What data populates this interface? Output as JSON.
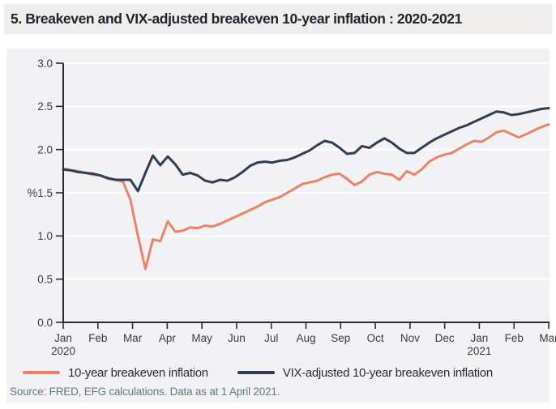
{
  "header": {
    "title": "5. Breakeven and VIX-adjusted breakeven 10-year inflation : 2020-2021"
  },
  "chart_data": {
    "type": "line",
    "title": "5. Breakeven and VIX-adjusted breakeven 10-year inflation : 2020-2021",
    "xlabel": "",
    "ylabel": "%",
    "ylim": [
      0.0,
      3.0
    ],
    "y_ticks": [
      0.0,
      0.5,
      1.0,
      1.5,
      2.0,
      2.5,
      3.0
    ],
    "y_tick_labels": [
      "0.0",
      "0.5",
      "1.0",
      "1.5",
      "2.0",
      "2.5",
      "3.0"
    ],
    "x_tick_labels": [
      "Jan",
      "Feb",
      "Mar",
      "Apr",
      "May",
      "Jun",
      "Jul",
      "Aug",
      "Sep",
      "Oct",
      "Nov",
      "Dec",
      "Jan",
      "Feb",
      "Mar"
    ],
    "x_year_labels": [
      {
        "month_index": 0,
        "label": "2020"
      },
      {
        "month_index": 12,
        "label": "2021"
      }
    ],
    "grid": true,
    "legend_position": "bottom",
    "x_frequency": "weekly",
    "series": [
      {
        "name": "10-year breakeven inflation",
        "color": "#EE8263",
        "values": [
          1.78,
          1.76,
          1.75,
          1.73,
          1.71,
          1.7,
          1.66,
          1.65,
          1.63,
          1.42,
          1.0,
          0.62,
          0.96,
          0.94,
          1.17,
          1.05,
          1.06,
          1.1,
          1.09,
          1.12,
          1.11,
          1.14,
          1.18,
          1.22,
          1.26,
          1.3,
          1.34,
          1.39,
          1.42,
          1.45,
          1.5,
          1.55,
          1.6,
          1.62,
          1.64,
          1.68,
          1.71,
          1.72,
          1.66,
          1.59,
          1.63,
          1.71,
          1.74,
          1.72,
          1.71,
          1.65,
          1.75,
          1.71,
          1.77,
          1.86,
          1.91,
          1.94,
          1.96,
          2.01,
          2.06,
          2.1,
          2.09,
          2.14,
          2.2,
          2.22,
          2.18,
          2.14,
          2.18,
          2.22,
          2.26,
          2.29
        ]
      },
      {
        "name": "VIX-adjusted 10-year breakeven inflation",
        "color": "#2E3F55",
        "values": [
          1.77,
          1.76,
          1.74,
          1.73,
          1.72,
          1.7,
          1.67,
          1.65,
          1.65,
          1.65,
          1.52,
          1.73,
          1.93,
          1.82,
          1.92,
          1.83,
          1.71,
          1.73,
          1.7,
          1.64,
          1.62,
          1.65,
          1.64,
          1.68,
          1.74,
          1.81,
          1.85,
          1.86,
          1.85,
          1.87,
          1.88,
          1.91,
          1.95,
          1.99,
          2.05,
          2.1,
          2.08,
          2.02,
          1.95,
          1.96,
          2.04,
          2.02,
          2.08,
          2.13,
          2.08,
          2.01,
          1.96,
          1.96,
          2.02,
          2.08,
          2.13,
          2.17,
          2.21,
          2.25,
          2.28,
          2.32,
          2.36,
          2.4,
          2.44,
          2.43,
          2.4,
          2.41,
          2.43,
          2.45,
          2.47,
          2.48
        ]
      }
    ]
  },
  "source_note": "Source: FRED, EFG calculations. Data as at 1 April 2021.",
  "colors": {
    "page_background": "#ffffff",
    "title_bar_background": "#efeeec",
    "panel_background": "#f2f2f4",
    "gridline": "#ffffff",
    "axis": "#2b2b33",
    "tick_text": "#3b3b47",
    "title_text": "#20242e",
    "legend_text": "#262c38",
    "source_text": "#5d7a8c",
    "series_orange": "#EE8263",
    "series_navy": "#2E3F55"
  }
}
